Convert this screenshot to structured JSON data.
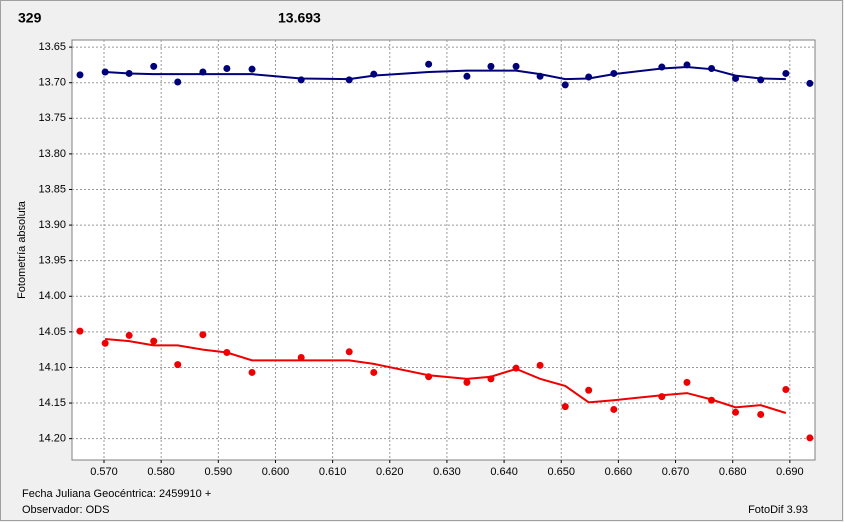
{
  "chart_data": {
    "type": "scatter",
    "title_left": "329",
    "title_left_color": "#e00000",
    "title_right": "13.693",
    "title_right_color": "#00008b",
    "ylabel": "Fotometría absoluta",
    "xlabel": "Fecha Juliana Geocéntrica: 2459910 +",
    "observer": "Observador: ODS",
    "software": "FotoDif 3.93",
    "grid": true,
    "y_inverted": true,
    "xlim": [
      0.5644,
      0.6944
    ],
    "ylim": [
      13.64,
      14.23
    ],
    "xticks": [
      {
        "value": 0.57,
        "label": "0.570"
      },
      {
        "value": 0.58,
        "label": "0.580"
      },
      {
        "value": 0.59,
        "label": "0.590"
      },
      {
        "value": 0.6,
        "label": "0.600"
      },
      {
        "value": 0.61,
        "label": "0.610"
      },
      {
        "value": 0.62,
        "label": "0.620"
      },
      {
        "value": 0.63,
        "label": "0.630"
      },
      {
        "value": 0.64,
        "label": "0.640"
      },
      {
        "value": 0.65,
        "label": "0.650"
      },
      {
        "value": 0.66,
        "label": "0.660"
      },
      {
        "value": 0.67,
        "label": "0.670"
      },
      {
        "value": 0.68,
        "label": "0.680"
      },
      {
        "value": 0.69,
        "label": "0.690"
      }
    ],
    "yticks": [
      13.65,
      {
        "value": 13.7,
        "label": "13.70"
      },
      13.75,
      {
        "value": 13.8,
        "label": "13.80"
      },
      13.85,
      {
        "value": 13.9,
        "label": "13.90"
      },
      13.95,
      {
        "value": 14.0,
        "label": "14.00"
      },
      14.05,
      {
        "value": 14.1,
        "label": "14.10"
      },
      14.15,
      {
        "value": 14.2,
        "label": "14.20"
      }
    ],
    "series": [
      {
        "style": "markers",
        "color": "#00007a",
        "x": [
          0.5658,
          0.5702,
          0.5744,
          0.5787,
          0.5829,
          0.5873,
          0.5915,
          0.5959,
          0.6045,
          0.6129,
          0.6172,
          0.6268,
          0.6335,
          0.6377,
          0.6421,
          0.6463,
          0.6507,
          0.6548,
          0.6592,
          0.6676,
          0.672,
          0.6763,
          0.6805,
          0.6849,
          0.6893,
          0.6935
        ],
        "values": [
          13.689,
          13.685,
          13.687,
          13.677,
          13.699,
          13.685,
          13.68,
          13.681,
          13.696,
          13.696,
          13.688,
          13.674,
          13.691,
          13.677,
          13.677,
          13.691,
          13.703,
          13.692,
          13.687,
          13.678,
          13.675,
          13.68,
          13.694,
          13.696,
          13.687,
          13.701
        ]
      },
      {
        "style": "line",
        "color": "#00007a",
        "x": [
          0.5702,
          0.5744,
          0.5787,
          0.5829,
          0.5873,
          0.5915,
          0.5959,
          0.6045,
          0.6129,
          0.6172,
          0.6268,
          0.6335,
          0.6377,
          0.6421,
          0.6463,
          0.6507,
          0.6548,
          0.6592,
          0.6676,
          0.672,
          0.6763,
          0.6805,
          0.6849,
          0.6893
        ],
        "values": [
          13.685,
          13.687,
          13.688,
          13.688,
          13.688,
          13.688,
          13.688,
          13.694,
          13.695,
          13.69,
          13.685,
          13.683,
          13.683,
          13.683,
          13.688,
          13.695,
          13.694,
          13.688,
          13.68,
          13.678,
          13.681,
          13.69,
          13.694,
          13.695
        ]
      },
      {
        "style": "markers",
        "color": "#ee0000",
        "x": [
          0.5658,
          0.5702,
          0.5744,
          0.5787,
          0.5829,
          0.5873,
          0.5915,
          0.5959,
          0.6045,
          0.6129,
          0.6172,
          0.6268,
          0.6335,
          0.6377,
          0.6421,
          0.6463,
          0.6507,
          0.6548,
          0.6592,
          0.6676,
          0.672,
          0.6763,
          0.6805,
          0.6849,
          0.6893,
          0.6935
        ],
        "values": [
          14.049,
          14.066,
          14.055,
          14.063,
          14.096,
          14.054,
          14.079,
          14.107,
          14.086,
          14.078,
          14.107,
          14.113,
          14.121,
          14.116,
          14.101,
          14.097,
          14.155,
          14.132,
          14.159,
          14.141,
          14.121,
          14.146,
          14.163,
          14.166,
          14.131,
          14.199
        ]
      },
      {
        "style": "line",
        "color": "#ee0000",
        "x": [
          0.5702,
          0.5744,
          0.5787,
          0.5829,
          0.5873,
          0.5915,
          0.5959,
          0.6045,
          0.6129,
          0.6172,
          0.6268,
          0.6335,
          0.6377,
          0.6421,
          0.6463,
          0.6507,
          0.6548,
          0.6592,
          0.6676,
          0.672,
          0.6763,
          0.6805,
          0.6849,
          0.6893
        ],
        "values": [
          14.06,
          14.063,
          14.069,
          14.069,
          14.075,
          14.079,
          14.09,
          14.09,
          14.09,
          14.095,
          14.111,
          14.116,
          14.113,
          14.102,
          14.116,
          14.126,
          14.149,
          14.146,
          14.139,
          14.136,
          14.145,
          14.156,
          14.153,
          14.164
        ]
      }
    ]
  }
}
